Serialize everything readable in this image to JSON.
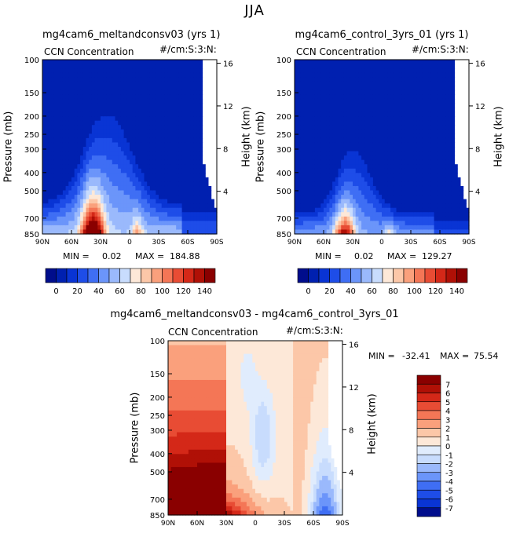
{
  "figure_title": "JJA",
  "chart_data": [
    {
      "type": "heatmap",
      "title": "mg4cam6_meltandconsv03 (yrs 1)",
      "variable": "CCN Concentration",
      "units": "#/cm:S:3:N:",
      "xlabel": "",
      "ylabel": "Pressure (mb)",
      "y2label": "Height (km)",
      "x_ticks": [
        "90N",
        "60N",
        "30N",
        "0",
        "30S",
        "60S",
        "90S"
      ],
      "y_ticks": [
        "100",
        "150",
        "200",
        "250",
        "300",
        "400",
        "500",
        "700",
        "850"
      ],
      "y2_ticks": [
        "16",
        "12",
        "8",
        "4"
      ],
      "stats": {
        "min_label": "MIN =",
        "min": "0.02",
        "max_label": "MAX =",
        "max": "184.88"
      },
      "colorbar_labels": [
        "0",
        "20",
        "40",
        "60",
        "80",
        "100",
        "120",
        "140"
      ],
      "colorbar_levels": [
        -10,
        0,
        10,
        20,
        30,
        40,
        50,
        60,
        70,
        80,
        90,
        100,
        110,
        120,
        130,
        140,
        150
      ],
      "colors": [
        "#000d8c",
        "#0020b0",
        "#0934d4",
        "#1e4de8",
        "#3f6ef4",
        "#6b95fa",
        "#9ab9fc",
        "#c8dcfd",
        "#fde8d8",
        "#fcc7a8",
        "#faa07c",
        "#f47656",
        "#e84c34",
        "#d42818",
        "#b01006",
        "#8a0000"
      ]
    },
    {
      "type": "heatmap",
      "title": "mg4cam6_control_3yrs_01 (yrs 1)",
      "variable": "CCN Concentration",
      "units": "#/cm:S:3:N:",
      "xlabel": "",
      "ylabel": "Pressure (mb)",
      "y2label": "Height (km)",
      "x_ticks": [
        "90N",
        "60N",
        "30N",
        "0",
        "30S",
        "60S",
        "90S"
      ],
      "y_ticks": [
        "100",
        "150",
        "200",
        "250",
        "300",
        "400",
        "500",
        "700",
        "850"
      ],
      "y2_ticks": [
        "16",
        "12",
        "8",
        "4"
      ],
      "stats": {
        "min_label": "MIN =",
        "min": "0.02",
        "max_label": "MAX =",
        "max": "129.27"
      },
      "colorbar_labels": [
        "0",
        "20",
        "40",
        "60",
        "80",
        "100",
        "120",
        "140"
      ]
    },
    {
      "type": "heatmap",
      "title": "mg4cam6_meltandconsv03 - mg4cam6_control_3yrs_01",
      "variable": "CCN Concentration",
      "units": "#/cm:S:3:N:",
      "xlabel": "",
      "ylabel": "Pressure (mb)",
      "y2label": "Height (km)",
      "x_ticks": [
        "90N",
        "60N",
        "30N",
        "0",
        "30S",
        "60S",
        "90S"
      ],
      "y_ticks": [
        "100",
        "150",
        "200",
        "250",
        "300",
        "400",
        "500",
        "700",
        "850"
      ],
      "y2_ticks": [
        "16",
        "12",
        "8",
        "4"
      ],
      "stats": {
        "min_label": "MIN =",
        "min": "-32.41",
        "max_label": "MAX =",
        "max": "75.54"
      },
      "colorbar_labels": [
        "7",
        "6",
        "5",
        "4",
        "3",
        "2",
        "1",
        "0",
        "-1",
        "-2",
        "-3",
        "-4",
        "-5",
        "-6",
        "-7"
      ],
      "colors": [
        "#8a0000",
        "#b01006",
        "#d42818",
        "#e84c34",
        "#f47656",
        "#faa07c",
        "#fcc7a8",
        "#fde8d8",
        "#e0ecfd",
        "#c8dcfd",
        "#9ab9fc",
        "#6b95fa",
        "#3f6ef4",
        "#1e4de8",
        "#0934d4",
        "#000d8c"
      ]
    }
  ]
}
